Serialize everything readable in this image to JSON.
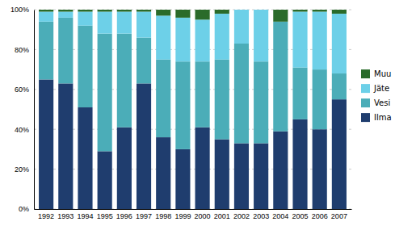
{
  "chart_data": {
    "type": "bar",
    "stacked": true,
    "categories": [
      "1992",
      "1993",
      "1994",
      "1995",
      "1996",
      "1997",
      "1998",
      "1999",
      "2000",
      "2001",
      "2002",
      "2003",
      "2004",
      "2005",
      "2006",
      "2007"
    ],
    "series": [
      {
        "name": "Ilma",
        "color": "#1F3D6E",
        "values": [
          65,
          63,
          51,
          29,
          41,
          63,
          36,
          30,
          41,
          35,
          33,
          33,
          39,
          45,
          40,
          55
        ]
      },
      {
        "name": "Vesi",
        "color": "#4BADB8",
        "values": [
          29,
          33,
          41,
          59,
          47,
          23,
          39,
          44,
          33,
          40,
          50,
          41,
          55,
          26,
          30,
          13
        ]
      },
      {
        "name": "Jäte",
        "color": "#6DD0E8",
        "values": [
          5,
          3,
          7,
          11,
          11,
          13,
          22,
          22,
          21,
          23,
          17,
          26,
          0,
          28,
          29,
          30
        ]
      },
      {
        "name": "Muu",
        "color": "#2A6B2A",
        "values": [
          1,
          1,
          1,
          1,
          1,
          1,
          3,
          4,
          5,
          2,
          0,
          0,
          6,
          1,
          1,
          2
        ]
      }
    ],
    "ylim": [
      0,
      100
    ],
    "yticks": [
      {
        "value": 0,
        "label": "0%"
      },
      {
        "value": 20,
        "label": "20%"
      },
      {
        "value": 40,
        "label": "40%"
      },
      {
        "value": 60,
        "label": "60%"
      },
      {
        "value": 80,
        "label": "80%"
      },
      {
        "value": 100,
        "label": "100%"
      }
    ],
    "grid": true,
    "legend": "right"
  }
}
